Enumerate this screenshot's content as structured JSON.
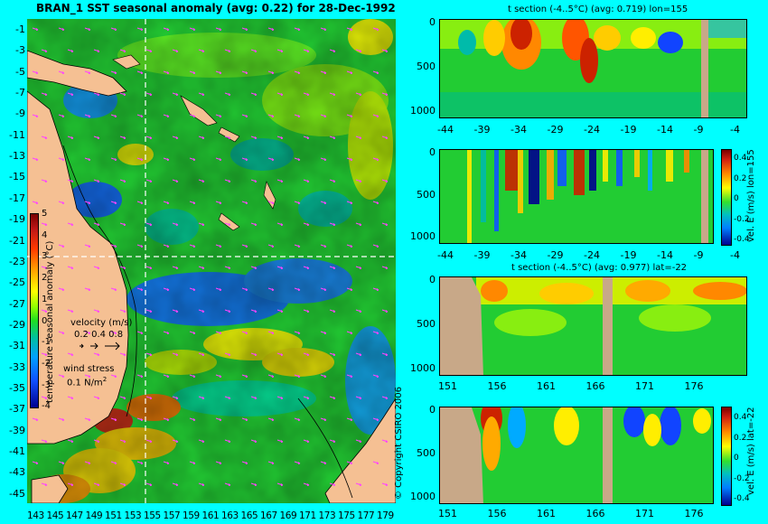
{
  "title": "BRAN_1 SST seasonal anomaly (avg: 0.22) for 28-Dec-1992",
  "map": {
    "lat_labels": [
      "-1",
      "-3",
      "-5",
      "-7",
      "-9",
      "-11",
      "-13",
      "-15",
      "-17",
      "-19",
      "-21",
      "-23",
      "-25",
      "-27",
      "-29",
      "-31",
      "-33",
      "-35",
      "-37",
      "-39",
      "-41",
      "-43",
      "-45"
    ],
    "lon_labels": [
      "143",
      "145",
      "147",
      "149",
      "151",
      "153",
      "155",
      "157",
      "159",
      "161",
      "163",
      "165",
      "167",
      "169",
      "171",
      "173",
      "175",
      "177",
      "179"
    ],
    "colorbar_ticks": [
      "5",
      "4",
      "3",
      "2",
      "1",
      "0",
      "-1",
      "-2",
      "-3",
      "-4"
    ],
    "colorbar_title": "temperature seasonal anomaly (°C)",
    "velocity_label": "velocity (m/s)",
    "velocity_scale": "0.2 0.4 0.8",
    "wind_label": "wind stress",
    "wind_scale": "0.1 N/m",
    "wind_scale_sup": "2",
    "colors": {
      "land": "#f5c093",
      "ocean_base": "#22cc33",
      "background": "#00ffff"
    }
  },
  "panels": [
    {
      "title": "t section (-4..5°C) (avg: 0.719) lon=155",
      "y_ticks": [
        "0",
        "500",
        "1000"
      ],
      "x_ticks": [
        "-44",
        "-39",
        "-34",
        "-29",
        "-24",
        "-19",
        "-14",
        "-9",
        "-4"
      ],
      "colorbar_label": ""
    },
    {
      "title": "",
      "y_ticks": [
        "0",
        "500",
        "1000"
      ],
      "x_ticks": [
        "-44",
        "-39",
        "-34",
        "-29",
        "-24",
        "-19",
        "-14",
        "-9",
        "-4"
      ],
      "colorbar_label": "vel. E (m/s) lon=155",
      "colorbar_ticks": [
        "0.4",
        "0.2",
        "0",
        "-0.2",
        "-0.4"
      ]
    },
    {
      "title": "t section (-4..5°C) (avg: 0.977) lat=-22",
      "y_ticks": [
        "0",
        "500",
        "1000"
      ],
      "x_ticks": [
        "151",
        "156",
        "161",
        "166",
        "171",
        "176"
      ],
      "colorbar_label": ""
    },
    {
      "title": "",
      "y_ticks": [
        "0",
        "500",
        "1000"
      ],
      "x_ticks": [
        "151",
        "156",
        "161",
        "166",
        "171",
        "176"
      ],
      "colorbar_label": "vel. E (m/s) lat=-22",
      "colorbar_ticks": [
        "0.4",
        "0.2",
        "0",
        "-0.2",
        "-0.4"
      ]
    }
  ],
  "copyright": "© Copyright CSIRO 2006"
}
